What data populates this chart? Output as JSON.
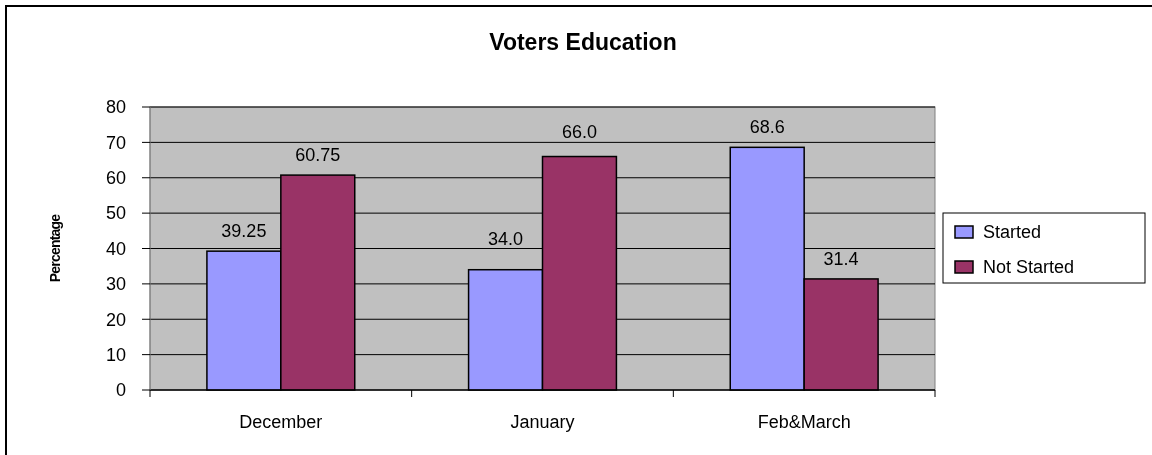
{
  "chart_data": {
    "type": "bar",
    "title": "Voters Education",
    "ylabel": "Percentage",
    "categories": [
      "December",
      "January",
      "Feb&March"
    ],
    "series": [
      {
        "name": "Started",
        "color": "#9999ff",
        "values": [
          39.25,
          34,
          68.6
        ],
        "value_labels": [
          "39.25",
          "34.0",
          "68.6"
        ]
      },
      {
        "name": "Not Started",
        "color": "#993366",
        "values": [
          60.75,
          66,
          31.4
        ],
        "value_labels": [
          "60.75",
          "66.0",
          "31.4"
        ]
      }
    ],
    "ylim": [
      0,
      80
    ],
    "yticks": [
      0,
      10,
      20,
      30,
      40,
      50,
      60,
      70,
      80
    ],
    "grid": "y",
    "legend": "right"
  }
}
